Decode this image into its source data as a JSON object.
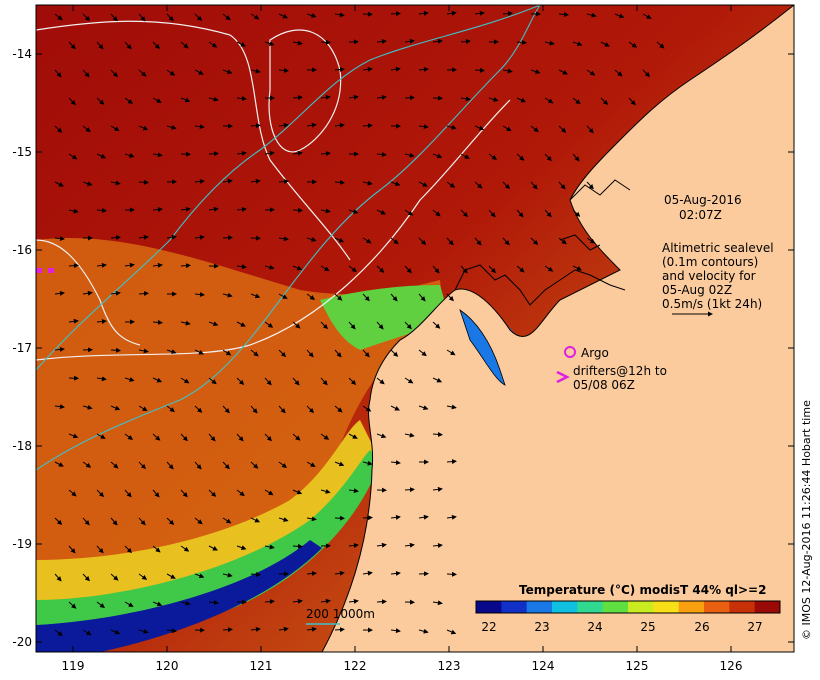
{
  "axes": {
    "lon_ticks": [
      "119",
      "120",
      "121",
      "122",
      "123",
      "124",
      "125",
      "126"
    ],
    "lat_ticks": [
      "-14",
      "-15",
      "-16",
      "-17",
      "-18",
      "-19",
      "-20"
    ]
  },
  "annotations": {
    "date_line1": "05-Aug-2016",
    "date_line2": "02:07Z",
    "altimetry_lines": [
      "Altimetric sealevel",
      "(0.1m contours)",
      "and velocity for",
      "05-Aug 02Z",
      "0.5m/s (1kt 24h)"
    ],
    "argo_label": "Argo",
    "drifters_line1": "drifters@12h to",
    "drifters_line2": "05/08 06Z"
  },
  "depth_legend": {
    "label": "200  1000m"
  },
  "colorbar": {
    "title": "Temperature (°C) modisT 44% ql>=2",
    "ticks": [
      "22",
      "23",
      "24",
      "25",
      "26",
      "27"
    ],
    "colors": [
      "#08088a",
      "#1030c8",
      "#1a78e6",
      "#10c0e0",
      "#30d890",
      "#60e040",
      "#c8ec20",
      "#f8e018",
      "#f8a010",
      "#e86010",
      "#c83008",
      "#9a0a06"
    ]
  },
  "credit": "© IMOS 12-Aug-2016 11:26:44 Hobart time",
  "colors": {
    "land": "#fbcb9e",
    "warm_sea": "#a8100a",
    "contour": "#f0f0f0",
    "isobath": "#40c0c8",
    "marker": "#e020e0"
  }
}
